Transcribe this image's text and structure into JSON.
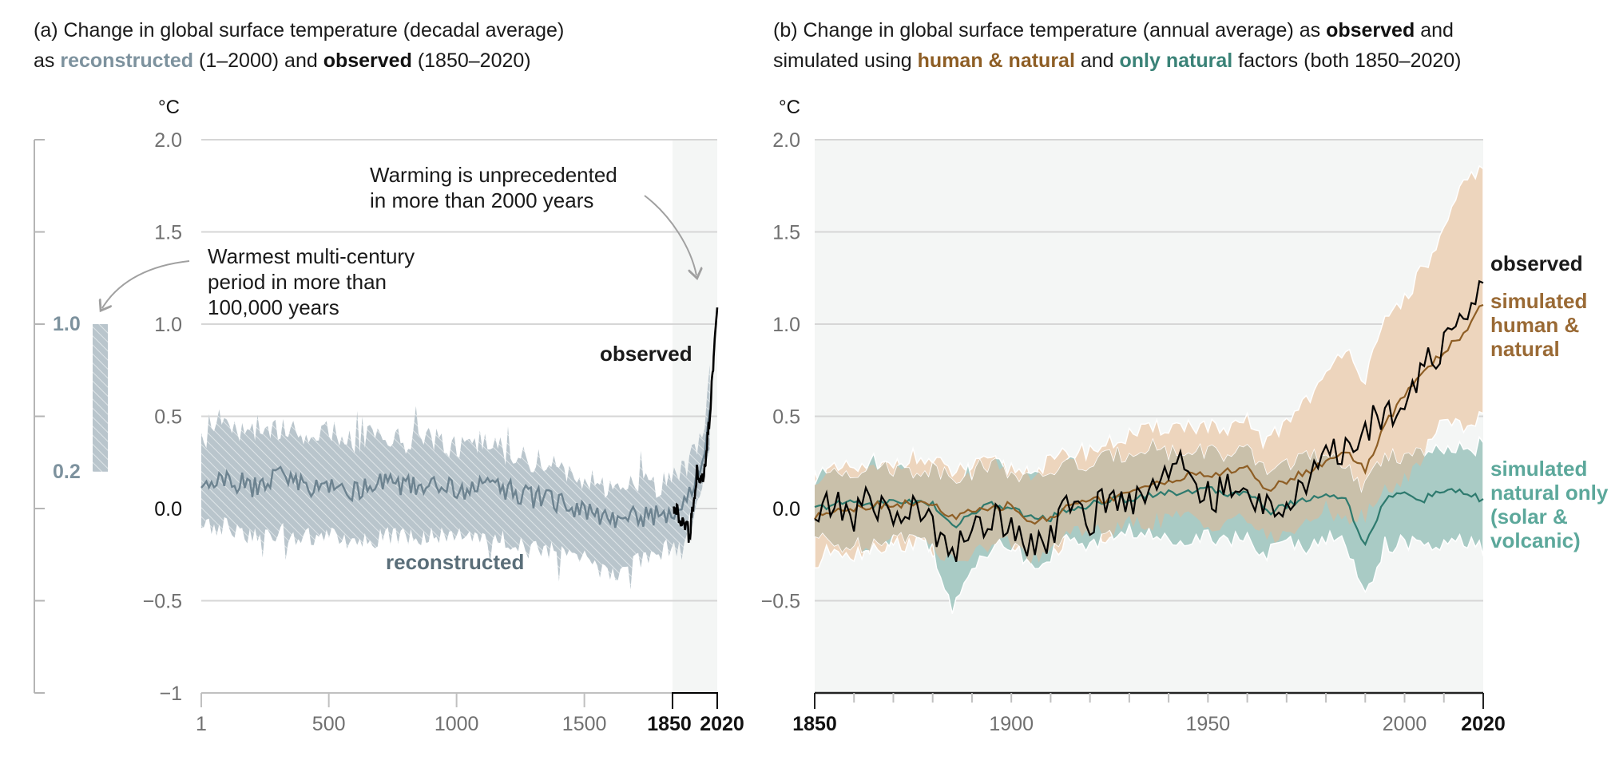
{
  "panel_a": {
    "title_line1": "(a) Change in global surface temperature (decadal average)",
    "title_line2_prefix": "as ",
    "title_line2_rec": "reconstructed",
    "title_line2_mid": " (1–2000) and ",
    "title_line2_obs": "observed",
    "title_line2_suffix": " (1850–2020)",
    "unit": "°C",
    "annotation_warmest": [
      "Warmest multi-century",
      "period in more than",
      "100,000 years"
    ],
    "annotation_unprecedented": [
      "Warming is unprecedented",
      "in more than 2000 years"
    ],
    "label_observed": "observed",
    "label_reconstructed": "reconstructed",
    "side_scale": {
      "upper_label": "1.0",
      "lower_label": "0.2"
    }
  },
  "panel_b": {
    "title_line1_prefix": "(b) Change in global surface temperature (annual average) as ",
    "title_line1_obs": "observed",
    "title_line1_suffix": " and",
    "title_line2_prefix": "simulated using ",
    "title_line2_hn": "human & natural",
    "title_line2_mid": " and ",
    "title_line2_nat": "only natural",
    "title_line2_suffix": " factors (both 1850–2020)",
    "unit": "°C",
    "label_observed": "observed",
    "label_human_natural": [
      "simulated",
      "human &",
      "natural"
    ],
    "label_natural_only": [
      "simulated",
      "natural only",
      "(solar &",
      "volcanic)"
    ]
  },
  "colors": {
    "reconstructed": "#7d929e",
    "reconstructed_band": "#b9c5cc",
    "observed": "#000000",
    "human_natural": "#8e5e25",
    "human_natural_band": "#edd5bd",
    "natural_only": "#3a8277",
    "natural_only_band": "#a9cbc5",
    "overlap_band": "#c9c0aa",
    "grid": "#d6d6d6",
    "shade_bg": "#f4f6f5"
  },
  "chart_data": [
    {
      "type": "area",
      "title": "(a) Change in global surface temperature (decadal average) as reconstructed (1–2000) and observed (1850–2020)",
      "ylabel": "°C",
      "ylim": [
        -1,
        2
      ],
      "xlim": [
        1,
        2020
      ],
      "yticks": [
        "2.0",
        "1.5",
        "1.0",
        "0.5",
        "0.0",
        "−0.5",
        "−1"
      ],
      "xticks": [
        "1",
        "500",
        "1000",
        "1500",
        "1850",
        "2020"
      ],
      "grid": true,
      "side_range": {
        "label": "Warmest multi-century period in more than 100,000 years",
        "low": 0.2,
        "high": 1.0
      },
      "series": [
        {
          "name": "reconstructed",
          "x": [
            1,
            100,
            200,
            300,
            400,
            500,
            600,
            700,
            800,
            900,
            1000,
            1100,
            1200,
            1300,
            1400,
            1500,
            1600,
            1700,
            1800,
            1850,
            1900,
            1950,
            2000
          ],
          "values": [
            0.08,
            0.16,
            0.12,
            0.18,
            0.12,
            0.14,
            0.1,
            0.14,
            0.12,
            0.14,
            0.1,
            0.12,
            0.1,
            0.06,
            0.04,
            -0.02,
            -0.08,
            -0.04,
            -0.04,
            0.0,
            0.06,
            0.2,
            0.56
          ],
          "upper": [
            0.36,
            0.44,
            0.42,
            0.44,
            0.4,
            0.42,
            0.36,
            0.4,
            0.36,
            0.38,
            0.32,
            0.36,
            0.3,
            0.26,
            0.22,
            0.16,
            0.1,
            0.14,
            0.12,
            0.18,
            0.22,
            0.36,
            0.7
          ],
          "lower": [
            -0.12,
            -0.1,
            -0.16,
            -0.12,
            -0.16,
            -0.16,
            -0.18,
            -0.16,
            -0.16,
            -0.14,
            -0.12,
            -0.14,
            -0.18,
            -0.22,
            -0.24,
            -0.28,
            -0.36,
            -0.28,
            -0.24,
            -0.18,
            -0.12,
            0.06,
            0.4
          ]
        },
        {
          "name": "observed",
          "x": [
            1850,
            1860,
            1870,
            1880,
            1890,
            1900,
            1910,
            1920,
            1930,
            1940,
            1950,
            1960,
            1970,
            1980,
            1990,
            2000,
            2010,
            2020
          ],
          "values": [
            -0.02,
            0.0,
            -0.05,
            -0.06,
            -0.1,
            -0.05,
            -0.18,
            -0.05,
            0.05,
            0.2,
            0.18,
            0.15,
            0.2,
            0.35,
            0.5,
            0.7,
            0.92,
            1.09
          ]
        }
      ]
    },
    {
      "type": "line",
      "title": "(b) Change in global surface temperature (annual average) as observed and simulated using human & natural and only natural factors (both 1850–2020)",
      "ylabel": "°C",
      "ylim": [
        -0.95,
        2
      ],
      "xlim": [
        1850,
        2020
      ],
      "yticks": [
        "2.0",
        "1.5",
        "1.0",
        "0.5",
        "0.0",
        "−0.5"
      ],
      "xticks": [
        "1850",
        "1900",
        "1950",
        "2000",
        "2020"
      ],
      "grid": true,
      "x": [
        1850,
        1855,
        1860,
        1865,
        1870,
        1875,
        1880,
        1885,
        1890,
        1895,
        1900,
        1905,
        1910,
        1915,
        1920,
        1925,
        1930,
        1935,
        1940,
        1945,
        1950,
        1955,
        1960,
        1965,
        1970,
        1975,
        1980,
        1985,
        1990,
        1995,
        2000,
        2005,
        2010,
        2015,
        2020
      ],
      "series": [
        {
          "name": "observed",
          "values": [
            -0.05,
            0.02,
            -0.03,
            0.05,
            -0.05,
            0.0,
            -0.1,
            -0.2,
            -0.15,
            -0.05,
            -0.05,
            -0.2,
            -0.15,
            0.02,
            -0.05,
            0.05,
            0.05,
            0.1,
            0.25,
            0.2,
            0.05,
            0.1,
            0.05,
            0.02,
            0.05,
            0.1,
            0.28,
            0.3,
            0.45,
            0.5,
            0.62,
            0.78,
            0.88,
            0.98,
            1.25
          ]
        },
        {
          "name": "simulated human & natural",
          "values": [
            -0.05,
            0.0,
            0.0,
            0.02,
            0.02,
            0.03,
            0.02,
            -0.05,
            -0.02,
            0.0,
            0.02,
            -0.08,
            -0.05,
            0.02,
            0.05,
            0.05,
            0.1,
            0.12,
            0.15,
            0.18,
            0.18,
            0.2,
            0.22,
            0.1,
            0.15,
            0.2,
            0.25,
            0.32,
            0.2,
            0.45,
            0.62,
            0.75,
            0.85,
            0.95,
            1.12
          ]
        },
        {
          "name": "simulated natural only",
          "values": [
            0.0,
            0.02,
            0.04,
            0.02,
            0.04,
            0.04,
            0.02,
            -0.1,
            -0.02,
            0.02,
            0.0,
            -0.05,
            -0.05,
            0.0,
            0.02,
            0.05,
            0.05,
            0.08,
            0.08,
            0.1,
            0.1,
            0.08,
            0.1,
            -0.02,
            0.02,
            0.05,
            0.08,
            0.05,
            -0.2,
            0.05,
            0.08,
            0.05,
            0.1,
            0.08,
            0.05
          ]
        }
      ],
      "bands": [
        {
          "name": "human & natural range",
          "upper": [
            0.18,
            0.2,
            0.22,
            0.2,
            0.25,
            0.28,
            0.25,
            0.2,
            0.22,
            0.25,
            0.22,
            0.2,
            0.25,
            0.3,
            0.32,
            0.35,
            0.4,
            0.42,
            0.45,
            0.45,
            0.45,
            0.4,
            0.48,
            0.35,
            0.48,
            0.6,
            0.7,
            0.9,
            0.7,
            1.0,
            1.15,
            1.3,
            1.5,
            1.75,
            1.88
          ],
          "lower": [
            -0.32,
            -0.2,
            -0.25,
            -0.2,
            -0.2,
            -0.18,
            -0.22,
            -0.3,
            -0.25,
            -0.2,
            -0.18,
            -0.28,
            -0.25,
            -0.15,
            -0.12,
            -0.15,
            -0.08,
            -0.08,
            -0.05,
            -0.05,
            -0.1,
            -0.05,
            -0.05,
            -0.18,
            -0.12,
            -0.1,
            0.0,
            -0.05,
            -0.05,
            0.1,
            0.15,
            0.3,
            0.5,
            0.45,
            0.5
          ]
        },
        {
          "name": "natural only range",
          "upper": [
            0.15,
            0.22,
            0.2,
            0.25,
            0.22,
            0.2,
            0.22,
            0.18,
            0.2,
            0.25,
            0.2,
            0.15,
            0.2,
            0.25,
            0.22,
            0.28,
            0.3,
            0.35,
            0.3,
            0.3,
            0.32,
            0.28,
            0.3,
            0.2,
            0.25,
            0.28,
            0.25,
            0.25,
            0.1,
            0.3,
            0.28,
            0.3,
            0.3,
            0.32,
            0.35
          ],
          "lower": [
            -0.15,
            -0.2,
            -0.2,
            -0.18,
            -0.15,
            -0.15,
            -0.2,
            -0.58,
            -0.3,
            -0.2,
            -0.2,
            -0.3,
            -0.25,
            -0.15,
            -0.2,
            -0.15,
            -0.12,
            -0.15,
            -0.18,
            -0.15,
            -0.15,
            -0.15,
            -0.18,
            -0.25,
            -0.18,
            -0.2,
            -0.15,
            -0.2,
            -0.45,
            -0.2,
            -0.18,
            -0.22,
            -0.2,
            -0.18,
            -0.22
          ]
        }
      ]
    }
  ]
}
